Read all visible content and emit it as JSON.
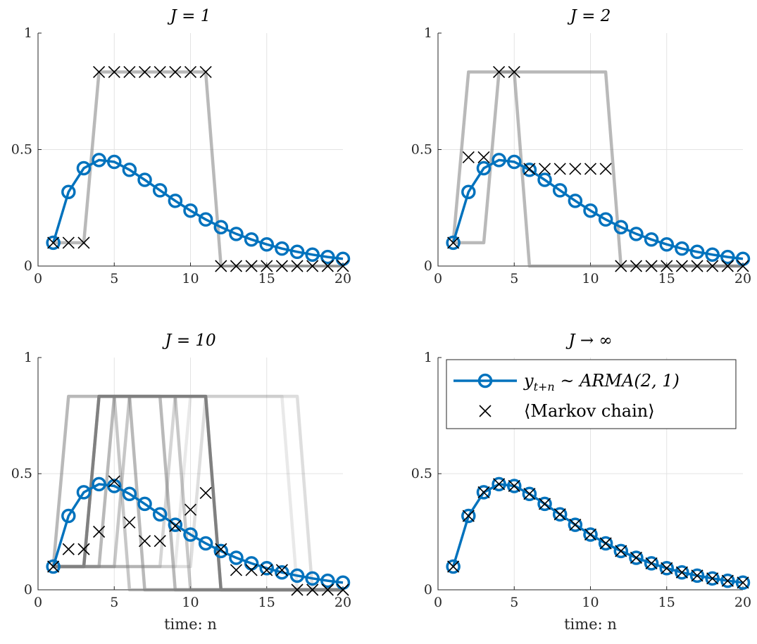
{
  "chart_data": [
    {
      "type": "line",
      "title": "J = 1",
      "xlabel": "",
      "xlim": [
        0,
        20
      ],
      "ylim": [
        0,
        1
      ],
      "xticks": [
        0,
        5,
        10,
        15,
        20
      ],
      "yticks": [
        0,
        0.5,
        1
      ],
      "ytick_labels": [
        "0",
        "0.5",
        "1"
      ],
      "grid": true,
      "paths": [
        {
          "opacity": 0.25,
          "values": [
            0.1,
            0.1,
            0.1,
            0.833,
            0.833,
            0.833,
            0.833,
            0.833,
            0.833,
            0.833,
            0.833,
            0,
            0,
            0,
            0,
            0,
            0,
            0,
            0,
            0
          ]
        }
      ],
      "markov": [
        0.1,
        0.1,
        0.1,
        0.833,
        0.833,
        0.833,
        0.833,
        0.833,
        0.833,
        0.833,
        0.833,
        0,
        0,
        0,
        0,
        0,
        0,
        0,
        0,
        0
      ]
    },
    {
      "type": "line",
      "title": "J = 2",
      "xlabel": "",
      "xlim": [
        0,
        20
      ],
      "ylim": [
        0,
        1
      ],
      "xticks": [
        0,
        5,
        10,
        15,
        20
      ],
      "yticks": [
        0,
        0.5,
        1
      ],
      "ytick_labels": [
        "0",
        "0.5",
        "1"
      ],
      "grid": true,
      "paths": [
        {
          "opacity": 0.25,
          "values": [
            0.1,
            0.1,
            0.1,
            0.833,
            0.833,
            0.833,
            0.833,
            0.833,
            0.833,
            0.833,
            0.833,
            0,
            0,
            0,
            0,
            0,
            0,
            0,
            0,
            0
          ]
        },
        {
          "opacity": 0.25,
          "values": [
            0.1,
            0.833,
            0.833,
            0.833,
            0.833,
            0,
            0,
            0,
            0,
            0,
            0,
            0,
            0,
            0,
            0,
            0,
            0,
            0,
            0,
            0
          ]
        }
      ],
      "markov": [
        0.1,
        0.467,
        0.467,
        0.833,
        0.833,
        0.417,
        0.417,
        0.417,
        0.417,
        0.417,
        0.417,
        0,
        0,
        0,
        0,
        0,
        0,
        0,
        0,
        0
      ]
    },
    {
      "type": "line",
      "title": "J = 10",
      "xlabel": "time: n",
      "xlim": [
        0,
        20
      ],
      "ylim": [
        0,
        1
      ],
      "xticks": [
        0,
        5,
        10,
        15,
        20
      ],
      "yticks": [
        0,
        0.5,
        1
      ],
      "ytick_labels": [
        "0",
        "0.5",
        "1"
      ],
      "grid": true,
      "paths": [
        {
          "opacity": 0.25,
          "values": [
            0.1,
            0.833,
            0.833,
            0.833,
            0.833,
            0.833,
            0.833,
            0.833,
            0,
            0,
            0,
            0,
            0,
            0,
            0,
            0,
            0,
            0,
            0,
            0
          ]
        },
        {
          "opacity": 0.2,
          "values": [
            0.1,
            0.1,
            0.1,
            0.833,
            0.833,
            0,
            0,
            0,
            0,
            0,
            0,
            0,
            0,
            0,
            0,
            0,
            0,
            0,
            0,
            0
          ]
        },
        {
          "opacity": 0.25,
          "values": [
            0.1,
            0.1,
            0.1,
            0.1,
            0.833,
            0.833,
            0,
            0,
            0,
            0,
            0,
            0,
            0,
            0,
            0,
            0,
            0,
            0,
            0,
            0
          ]
        },
        {
          "opacity": 0.2,
          "values": [
            0.1,
            0.1,
            0.1,
            0.1,
            0.1,
            0.833,
            0.833,
            0.833,
            0.833,
            0,
            0,
            0,
            0,
            0,
            0,
            0,
            0,
            0,
            0,
            0
          ]
        },
        {
          "opacity": 0.15,
          "values": [
            0.1,
            0.1,
            0.1,
            0.1,
            0.1,
            0.1,
            0.1,
            0.1,
            0.833,
            0.833,
            0.833,
            0,
            0,
            0,
            0,
            0,
            0,
            0,
            0,
            0
          ]
        },
        {
          "opacity": 0.55,
          "values": [
            0.1,
            0.1,
            0.1,
            0.833,
            0.833,
            0.833,
            0.833,
            0.833,
            0.833,
            0.833,
            0.833,
            0,
            0,
            0,
            0,
            0,
            0,
            0,
            0,
            0
          ]
        },
        {
          "opacity": 0.08,
          "values": [
            0.1,
            0.1,
            0.1,
            0.1,
            0.1,
            0.1,
            0.1,
            0.1,
            0.1,
            0.833,
            0.833,
            0.833,
            0.833,
            0.833,
            0.833,
            0.833,
            0,
            0,
            0,
            0
          ]
        },
        {
          "opacity": 0.12,
          "values": [
            0.1,
            0.1,
            0.1,
            0.1,
            0.1,
            0.1,
            0.1,
            0.1,
            0.1,
            0.1,
            0.833,
            0.833,
            0.833,
            0.833,
            0.833,
            0.833,
            0.833,
            0,
            0,
            0
          ]
        }
      ],
      "markov": [
        0.1,
        0.175,
        0.175,
        0.25,
        0.467,
        0.29,
        0.21,
        0.21,
        0.275,
        0.345,
        0.417,
        0.175,
        0.085,
        0.085,
        0.085,
        0.085,
        0,
        0,
        0,
        0
      ]
    },
    {
      "type": "line",
      "title": "J → ∞",
      "xlabel": "time: n",
      "xlim": [
        0,
        20
      ],
      "ylim": [
        0,
        1
      ],
      "xticks": [
        0,
        5,
        10,
        15,
        20
      ],
      "yticks": [
        0,
        0.5,
        1
      ],
      "ytick_labels": [
        "0",
        "0.5",
        "1"
      ],
      "grid": true,
      "legend": true,
      "paths": [],
      "markov": [
        0.1,
        0.318,
        0.42,
        0.455,
        0.447,
        0.413,
        0.37,
        0.325,
        0.28,
        0.238,
        0.2,
        0.167,
        0.138,
        0.114,
        0.093,
        0.075,
        0.061,
        0.049,
        0.039,
        0.031
      ]
    }
  ],
  "arma_series": {
    "name": "y_{t+n} ~ ARMA(2,1)",
    "x": [
      1,
      2,
      3,
      4,
      5,
      6,
      7,
      8,
      9,
      10,
      11,
      12,
      13,
      14,
      15,
      16,
      17,
      18,
      19,
      20
    ],
    "values": [
      0.1,
      0.318,
      0.42,
      0.455,
      0.447,
      0.413,
      0.37,
      0.325,
      0.28,
      0.238,
      0.2,
      0.167,
      0.138,
      0.114,
      0.093,
      0.075,
      0.061,
      0.049,
      0.039,
      0.031
    ]
  },
  "legend": {
    "arma_main": "y",
    "arma_sub": "t+n",
    "arma_rest": " ~ ARMA(2, 1)",
    "markov_label": "⟨Markov chain⟩"
  },
  "colors": {
    "arma": "#0072BD",
    "markov": "#000000",
    "path": "#808080"
  }
}
